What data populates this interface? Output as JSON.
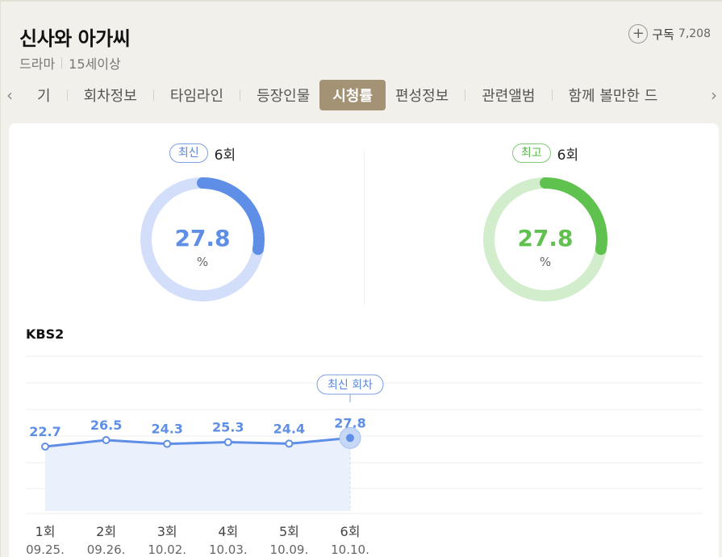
{
  "header": {
    "title": "신사와 아가씨",
    "genre": "드라마",
    "rating": "15세이상",
    "subscribe_label": "구독",
    "subscribe_count": "7,208"
  },
  "tabs": [
    {
      "label": "기"
    },
    {
      "label": "회차정보"
    },
    {
      "label": "타임라인"
    },
    {
      "label": "등장인물"
    },
    {
      "label": "시청률",
      "active": true
    },
    {
      "label": "편성정보"
    },
    {
      "label": "관련앨범"
    },
    {
      "label": "함께 볼만한 드"
    }
  ],
  "latest": {
    "badge": "최신",
    "episode": "6회",
    "value": "27.8",
    "unit": "%",
    "fraction": 0.278,
    "color": "#5f8ee6",
    "track": "#d3defa"
  },
  "best": {
    "badge": "최고",
    "episode": "6회",
    "value": "27.8",
    "unit": "%",
    "fraction": 0.278,
    "color": "#5fc24f",
    "track": "#d2edcc"
  },
  "chart_data": {
    "type": "line",
    "title": "KBS2",
    "categories": [
      "1회",
      "2회",
      "3회",
      "4회",
      "5회",
      "6회"
    ],
    "dates": [
      "09.25.",
      "09.26.",
      "10.02.",
      "10.03.",
      "10.09.",
      "10.10."
    ],
    "values": [
      22.7,
      26.5,
      24.3,
      25.3,
      24.4,
      27.8
    ],
    "highlight_label": "최신 회차",
    "grid": true,
    "color": "#5f8ee6",
    "fill": "#eaf1fd"
  }
}
